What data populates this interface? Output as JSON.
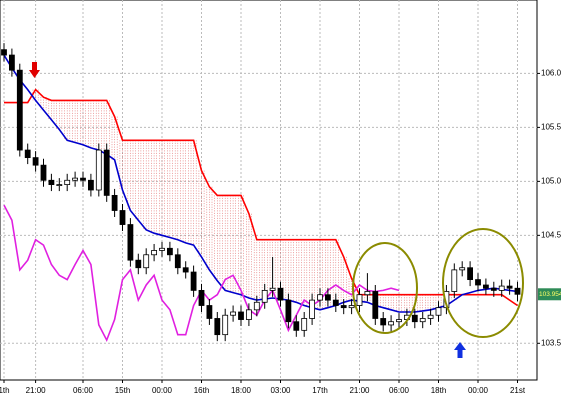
{
  "chart_data": {
    "type": "candlestick",
    "categories": [
      "1th",
      null,
      null,
      null,
      "21:00",
      null,
      null,
      null,
      null,
      null,
      "06:00",
      null,
      null,
      null,
      null,
      "15th",
      null,
      null,
      null,
      null,
      "00:00",
      null,
      null,
      null,
      null,
      "16th",
      null,
      null,
      null,
      null,
      "18:00",
      null,
      null,
      null,
      null,
      "03:00",
      null,
      null,
      null,
      null,
      "17th",
      null,
      null,
      null,
      null,
      "21:00",
      null,
      null,
      null,
      null,
      "06:00",
      null,
      null,
      null,
      null,
      "18th",
      null,
      null,
      null,
      null,
      "00:00",
      null,
      null,
      null,
      null,
      "21st"
    ],
    "open": [
      106.22,
      106.17,
      106.03,
      105.29,
      105.22,
      105.15,
      105.01,
      104.97,
      104.97,
      105.01,
      105.03,
      105.01,
      104.92,
      105.29,
      104.87,
      104.73,
      104.6,
      104.27,
      104.2,
      104.32,
      104.36,
      104.38,
      104.32,
      104.2,
      104.16,
      103.99,
      103.85,
      103.73,
      103.58,
      103.76,
      103.79,
      103.72,
      103.81,
      103.88,
      103.99,
      104.01,
      103.9,
      103.7,
      103.62,
      103.73,
      103.9,
      103.95,
      103.9,
      103.85,
      103.83,
      103.85,
      103.95,
      103.98,
      103.73,
      103.67,
      103.7,
      103.72,
      103.76,
      103.7,
      103.73,
      103.76,
      103.83,
      103.98,
      104.18,
      104.2,
      104.09,
      104.04,
      104.01,
      103.99,
      104.03,
      104.01
    ],
    "high": [
      106.28,
      106.23,
      106.09,
      105.35,
      105.28,
      105.21,
      105.07,
      105.03,
      105.07,
      105.09,
      105.09,
      105.07,
      105.35,
      105.35,
      104.93,
      104.79,
      104.66,
      104.33,
      104.38,
      104.42,
      104.44,
      104.44,
      104.38,
      104.26,
      104.22,
      104.05,
      103.91,
      103.79,
      103.82,
      103.85,
      103.85,
      103.87,
      103.94,
      104.05,
      104.3,
      104.07,
      103.96,
      103.76,
      103.79,
      103.96,
      104.01,
      104.01,
      103.96,
      103.91,
      103.91,
      104.01,
      104.15,
      104.04,
      103.79,
      103.76,
      103.78,
      103.82,
      103.82,
      103.79,
      103.82,
      103.89,
      104.04,
      104.24,
      104.26,
      104.26,
      104.15,
      104.1,
      104.07,
      104.09,
      104.09,
      104.07
    ],
    "low": [
      106.11,
      105.97,
      105.23,
      105.16,
      105.09,
      104.95,
      104.91,
      104.91,
      104.91,
      104.95,
      104.95,
      104.86,
      104.86,
      104.81,
      104.67,
      104.54,
      104.21,
      104.14,
      104.14,
      104.26,
      104.3,
      104.26,
      104.14,
      104.1,
      103.93,
      103.79,
      103.67,
      103.52,
      103.52,
      103.7,
      103.66,
      103.66,
      103.75,
      103.82,
      103.93,
      103.84,
      103.64,
      103.56,
      103.56,
      103.67,
      103.84,
      103.84,
      103.79,
      103.77,
      103.77,
      103.79,
      103.89,
      103.67,
      103.61,
      103.61,
      103.64,
      103.66,
      103.64,
      103.64,
      103.67,
      103.7,
      103.77,
      103.92,
      104.12,
      104.03,
      103.98,
      103.95,
      103.93,
      103.93,
      103.95,
      103.89
    ],
    "close": [
      106.17,
      106.03,
      105.29,
      105.22,
      105.15,
      105.01,
      104.97,
      104.97,
      105.01,
      105.03,
      105.01,
      104.92,
      105.29,
      104.87,
      104.73,
      104.6,
      104.27,
      104.2,
      104.32,
      104.36,
      104.38,
      104.32,
      104.2,
      104.16,
      103.99,
      103.85,
      103.73,
      103.58,
      103.76,
      103.79,
      103.72,
      103.81,
      103.88,
      103.99,
      104.01,
      103.9,
      103.7,
      103.62,
      103.73,
      103.9,
      103.95,
      103.9,
      103.85,
      103.83,
      103.85,
      103.95,
      103.98,
      103.73,
      103.67,
      103.7,
      103.72,
      103.76,
      103.7,
      103.73,
      103.76,
      103.83,
      103.98,
      104.18,
      104.2,
      104.09,
      104.04,
      104.01,
      103.99,
      104.03,
      104.01,
      103.954
    ],
    "series": [
      {
        "color": "#ff0000",
        "values": [
          105.73,
          105.73,
          105.73,
          105.73,
          105.85,
          105.78,
          105.75,
          105.75,
          105.75,
          105.75,
          105.75,
          105.75,
          105.75,
          105.75,
          105.6,
          105.38,
          105.38,
          105.38,
          105.38,
          105.38,
          105.38,
          105.38,
          105.38,
          105.38,
          105.38,
          105.1,
          104.95,
          104.87,
          104.87,
          104.87,
          104.87,
          104.7,
          104.46,
          104.46,
          104.46,
          104.46,
          104.46,
          104.46,
          104.46,
          104.46,
          104.46,
          104.46,
          104.46,
          104.3,
          104.1,
          103.95,
          103.95,
          103.95,
          103.95,
          103.95,
          103.95,
          103.95,
          103.95,
          103.95,
          103.95,
          103.95,
          103.95,
          103.95,
          103.95,
          103.95,
          103.95,
          103.95,
          103.95,
          103.95,
          103.9,
          103.85
        ]
      },
      {
        "color": "#0000cc",
        "values": [
          106.17,
          106.05,
          105.94,
          105.85,
          105.75,
          105.66,
          105.57,
          105.48,
          105.38,
          105.36,
          105.34,
          105.31,
          105.29,
          105.25,
          105.2,
          104.92,
          104.73,
          104.64,
          104.55,
          104.52,
          104.5,
          104.48,
          104.46,
          104.43,
          104.41,
          104.3,
          104.18,
          104.08,
          103.99,
          103.97,
          103.95,
          103.92,
          103.9,
          103.91,
          103.92,
          103.91,
          103.9,
          103.88,
          103.85,
          103.83,
          103.81,
          103.83,
          103.85,
          103.88,
          103.9,
          103.89,
          103.88,
          103.85,
          103.83,
          103.81,
          103.79,
          103.79,
          103.79,
          103.8,
          103.81,
          103.83,
          103.85,
          103.9,
          103.95,
          103.97,
          103.99,
          104.0,
          104.01,
          104.0,
          103.99,
          103.98
        ]
      },
      {
        "color": "#e020e0",
        "values": [
          104.78,
          104.64,
          104.18,
          104.27,
          104.46,
          104.41,
          104.23,
          104.13,
          104.09,
          104.23,
          104.36,
          104.23,
          103.67,
          103.53,
          103.72,
          104.09,
          104.18,
          103.9,
          104.04,
          104.13,
          103.9,
          103.81,
          103.58,
          103.58,
          103.85,
          103.99,
          103.9,
          103.95,
          104.09,
          104.13,
          103.99,
          103.81,
          103.76,
          103.9,
          103.99,
          103.81,
          103.62,
          103.76,
          103.9,
          103.85,
          103.9,
          103.99,
          104.04,
          103.99,
          103.95,
          104.04,
          103.99,
          103.98,
          103.99,
          104.01,
          103.99,
          null,
          null,
          null,
          null,
          null,
          null,
          null,
          null,
          null,
          null,
          null,
          null,
          null,
          null,
          null
        ]
      }
    ],
    "cloud_color": "#e06060",
    "ylim": [
      103.16,
      106.68
    ],
    "yticks": [
      {
        "value": 103.5,
        "label": "103.500"
      },
      {
        "value": 104.5,
        "label": "104.500"
      },
      {
        "value": 105,
        "label": "105.000"
      },
      {
        "value": 105.5,
        "label": "105.500"
      },
      {
        "value": 106,
        "label": "106.000"
      }
    ],
    "last_price": 103.954,
    "grid": true
  }
}
